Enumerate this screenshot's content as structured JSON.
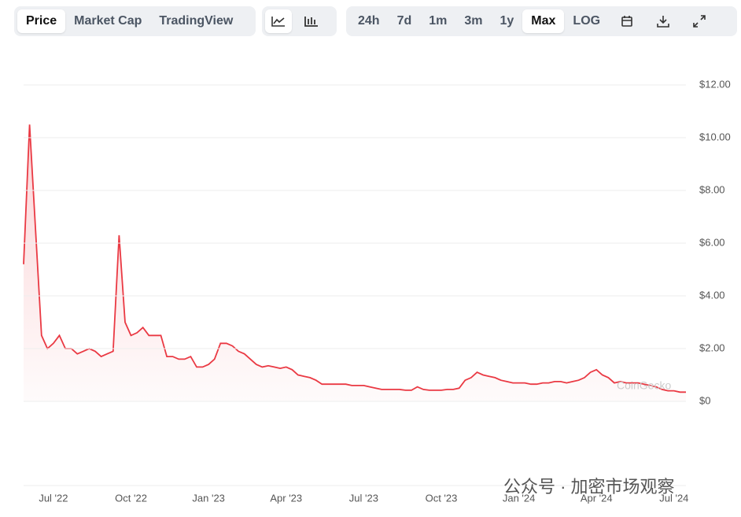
{
  "toolbar": {
    "views": [
      "Price",
      "Market Cap",
      "TradingView"
    ],
    "ranges": [
      "24h",
      "7d",
      "1m",
      "3m",
      "1y",
      "Max",
      "LOG"
    ]
  },
  "chart_data": {
    "type": "line",
    "watermark": "CoinGecko",
    "overlay": "公众号 · 加密市场观察",
    "series": [
      {
        "color": "#ea3943",
        "values": [
          5.2,
          10.5,
          6.5,
          2.5,
          2.0,
          2.2,
          2.5,
          2.0,
          2.0,
          1.8,
          1.9,
          2.0,
          1.9,
          1.7,
          1.8,
          1.9,
          6.3,
          3.0,
          2.5,
          2.6,
          2.8,
          2.5,
          2.5,
          2.5,
          1.7,
          1.7,
          1.6,
          1.6,
          1.7,
          1.3,
          1.3,
          1.4,
          1.6,
          2.2,
          2.2,
          2.1,
          1.9,
          1.8,
          1.6,
          1.4,
          1.3,
          1.35,
          1.3,
          1.25,
          1.3,
          1.2,
          1.0,
          0.95,
          0.9,
          0.8,
          0.65,
          0.65,
          0.65,
          0.65,
          0.65,
          0.6,
          0.6,
          0.6,
          0.55,
          0.5,
          0.45,
          0.45,
          0.45,
          0.45,
          0.42,
          0.42,
          0.55,
          0.45,
          0.42,
          0.42,
          0.42,
          0.45,
          0.45,
          0.5,
          0.8,
          0.9,
          1.1,
          1.0,
          0.95,
          0.9,
          0.8,
          0.75,
          0.7,
          0.7,
          0.7,
          0.65,
          0.65,
          0.7,
          0.7,
          0.75,
          0.75,
          0.7,
          0.75,
          0.8,
          0.9,
          1.1,
          1.2,
          1.0,
          0.9,
          0.7,
          0.75,
          0.7,
          0.7,
          0.7,
          0.65,
          0.6,
          0.55,
          0.45,
          0.4,
          0.4,
          0.35,
          0.35
        ]
      }
    ],
    "xlim": [
      0,
      111
    ],
    "xticks": [
      {
        "value": 5,
        "label": "Jul '22"
      },
      {
        "value": 18,
        "label": "Oct '22"
      },
      {
        "value": 31,
        "label": "Jan '23"
      },
      {
        "value": 44,
        "label": "Apr '23"
      },
      {
        "value": 57,
        "label": "Jul '23"
      },
      {
        "value": 70,
        "label": "Oct '23"
      },
      {
        "value": 83,
        "label": "Jan '24"
      },
      {
        "value": 96,
        "label": "Apr '24"
      },
      {
        "value": 109,
        "label": "Jul '24"
      }
    ],
    "ylim": [
      0,
      12
    ],
    "yticks": [
      {
        "value": 0,
        "label": "$0"
      },
      {
        "value": 2,
        "label": "$2.00"
      },
      {
        "value": 4,
        "label": "$4.00"
      },
      {
        "value": 6,
        "label": "$6.00"
      },
      {
        "value": 8,
        "label": "$8.00"
      },
      {
        "value": 10,
        "label": "$10.00"
      },
      {
        "value": 12,
        "label": "$12.00"
      }
    ],
    "grid": true
  }
}
